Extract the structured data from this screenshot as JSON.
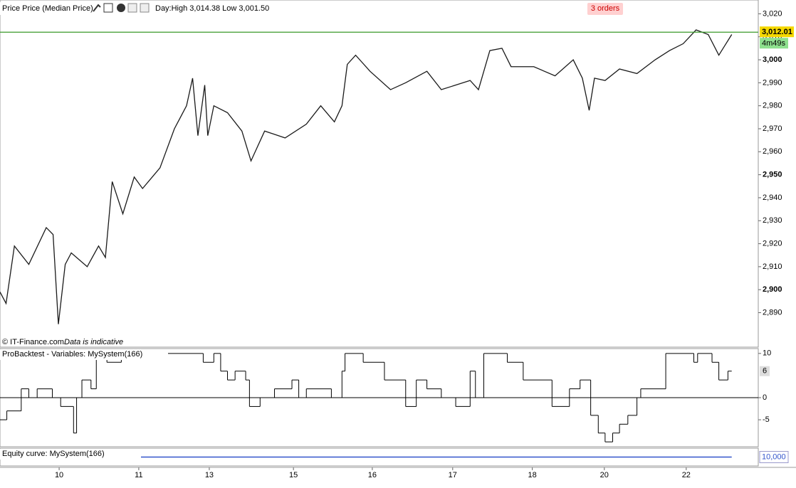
{
  "price_panel": {
    "type": "line",
    "title": "Price Price (Median Price)",
    "day_range": "Day:High 3,014.38 Low 3,001.50",
    "orders": "3 orders",
    "current_price": {
      "value": 3012.01,
      "label": "3,012.01"
    },
    "timer": "4m49s",
    "copyright": "© IT-Finance.com",
    "disclaimer": "Data is indicative",
    "color": "#1a1a1a",
    "current_line_color": "#3a9a2a",
    "x": [
      0,
      0.8,
      1.9,
      3.8,
      6.1,
      7.0,
      7.7,
      8.6,
      9.4,
      11.5,
      13.0,
      13.9,
      14.8,
      16.2,
      17.7,
      18.8,
      21.1,
      23.0,
      24.6,
      25.4,
      26.1,
      27.0,
      27.4,
      28.2,
      30.0,
      31.9,
      33.1,
      34.9,
      37.6,
      40.4,
      42.3,
      44.1,
      45.1,
      45.8,
      46.9,
      48.8,
      51.5,
      53.5,
      56.3,
      58.2,
      62.0,
      63.1,
      64.6,
      66.2,
      67.4,
      70.4,
      73.2,
      75.6,
      76.8,
      77.7,
      78.4,
      79.8,
      81.7,
      84.0,
      86.4,
      88.3,
      90.1,
      91.8,
      93.4,
      94.8,
      96.5
    ],
    "values": [
      2899,
      2894,
      2919,
      2911,
      2927,
      2924,
      2885,
      2911,
      2916,
      2910,
      2919,
      2914,
      2947,
      2933,
      2949,
      2944,
      2953,
      2970,
      2980,
      2992,
      2967,
      2989,
      2967,
      2980,
      2977,
      2969,
      2956,
      2969,
      2966,
      2972,
      2980,
      2973,
      2980,
      2998,
      3002,
      2995,
      2987,
      2990,
      2995,
      2987,
      2991,
      2987,
      3004,
      3005,
      2997,
      2997,
      2993,
      3000,
      2992,
      2978,
      2992,
      2991,
      2996,
      2994,
      3000,
      3004,
      3007,
      3013,
      3011,
      3002,
      3011
    ],
    "ylim": [
      2875,
      3026
    ],
    "yticks": [
      {
        "value": 3020,
        "label": "3,020"
      },
      {
        "value": 3010,
        "label": "3,010"
      },
      {
        "value": 3000,
        "label": "3,000"
      },
      {
        "value": 2990,
        "label": "2,990"
      },
      {
        "value": 2980,
        "label": "2,980"
      },
      {
        "value": 2970,
        "label": "2,970"
      },
      {
        "value": 2960,
        "label": "2,960"
      },
      {
        "value": 2950,
        "label": "2,950"
      },
      {
        "value": 2940,
        "label": "2,940"
      },
      {
        "value": 2930,
        "label": "2,930"
      },
      {
        "value": 2920,
        "label": "2,920"
      },
      {
        "value": 2910,
        "label": "2,910"
      },
      {
        "value": 2900,
        "label": "2,900"
      },
      {
        "value": 2890,
        "label": "2,890"
      }
    ],
    "bold_ticks": [
      3000,
      2950,
      2900
    ]
  },
  "indicator_panel": {
    "type": "step",
    "title": "ProBacktest - Variables: MySystem(166)",
    "current_value": 6,
    "color": "#000000",
    "x": [
      0,
      0.9,
      2.8,
      3.8,
      4.9,
      6.9,
      8.0,
      9.7,
      10.1,
      10.8,
      12.0,
      12.7,
      14.1,
      16.0,
      26.8,
      28.2,
      29.1,
      30.0,
      31.0,
      32.4,
      32.9,
      34.3,
      36.2,
      38.5,
      39.4,
      40.4,
      43.7,
      45.1,
      45.5,
      47.9,
      50.7,
      53.5,
      54.9,
      56.3,
      58.2,
      60.1,
      62.0,
      62.7,
      63.8,
      66.9,
      69.0,
      72.8,
      75.1,
      76.5,
      77.9,
      78.9,
      79.8,
      80.8,
      81.7,
      82.8,
      84.0,
      84.5,
      87.8,
      91.5,
      92.0,
      93.9,
      94.8,
      96.0
    ],
    "values": [
      -5,
      -3,
      2,
      0,
      2,
      0,
      -2,
      -8,
      0,
      4,
      2,
      10,
      8,
      10,
      8,
      10,
      6,
      4,
      6,
      4,
      -2,
      0,
      2,
      4,
      0,
      2,
      0,
      6,
      10,
      8,
      4,
      -2,
      4,
      2,
      0,
      -2,
      6,
      0,
      10,
      8,
      4,
      -2,
      2,
      4,
      -4,
      -8,
      -10,
      -8,
      -6,
      -4,
      0,
      2,
      10,
      8,
      10,
      8,
      4,
      6
    ],
    "ylim": [
      -11.1,
      11.1
    ],
    "yticks": [
      10,
      0,
      -5
    ],
    "zero_line": 0
  },
  "equity_panel": {
    "type": "line",
    "title": "Equity curve: MySystem(166)",
    "current_value": {
      "value": 10000,
      "label": "10,000"
    },
    "color": "#3355cc",
    "x": [
      0,
      96.5
    ],
    "values": [
      10000,
      10000
    ],
    "ylim": [
      9000,
      11000
    ]
  },
  "x_axis": {
    "xlim": [
      0,
      100
    ],
    "xticks": [
      {
        "value": 7.8,
        "label": "10"
      },
      {
        "value": 18.3,
        "label": "11"
      },
      {
        "value": 27.6,
        "label": "13"
      },
      {
        "value": 38.7,
        "label": "15"
      },
      {
        "value": 49.1,
        "label": "16"
      },
      {
        "value": 59.7,
        "label": "17"
      },
      {
        "value": 70.2,
        "label": "18"
      },
      {
        "value": 79.7,
        "label": "20"
      },
      {
        "value": 90.5,
        "label": "22"
      }
    ]
  }
}
